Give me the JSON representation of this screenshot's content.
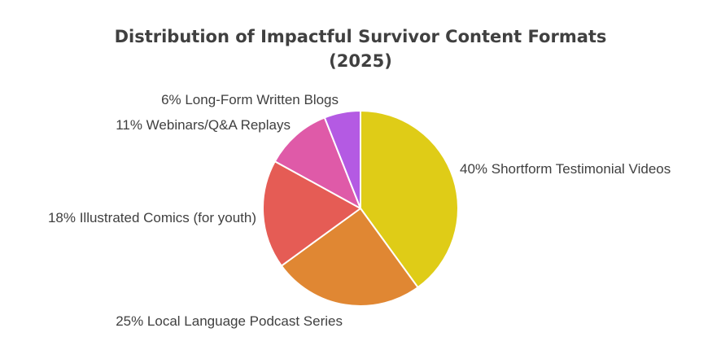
{
  "chart_data": {
    "type": "pie",
    "title_line1": "Distribution of Impactful Survivor Content Formats",
    "title_line2": "(2025)",
    "slices": [
      {
        "label": "Shortform Testimonial Videos",
        "value": 40,
        "color": "#dfcc17",
        "display": "40% Shortform Testimonial Videos"
      },
      {
        "label": "Local Language Podcast Series",
        "value": 25,
        "color": "#e08733",
        "display": "25% Local Language Podcast Series"
      },
      {
        "label": "Illustrated Comics (for youth)",
        "value": 18,
        "color": "#e55c55",
        "display": "18% Illustrated Comics (for youth)"
      },
      {
        "label": "Webinars/Q&A Replays",
        "value": 11,
        "color": "#df5aa8",
        "display": "11% Webinars/Q&A Replays"
      },
      {
        "label": "Long-Form Written Blogs",
        "value": 6,
        "color": "#b45ae3",
        "display": "6% Long-Form Written Blogs"
      }
    ]
  }
}
